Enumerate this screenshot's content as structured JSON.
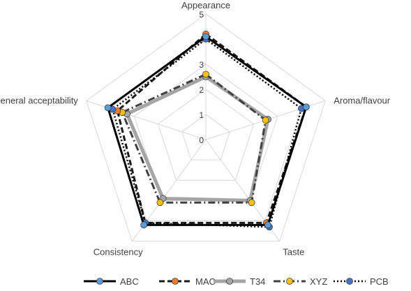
{
  "chart_data": {
    "type": "radar",
    "categories": [
      "Appearance",
      "Aroma/flavour",
      "Taste",
      "Consistency",
      "General acceptability"
    ],
    "rlim": [
      0,
      5
    ],
    "ticks": [
      "0",
      "1",
      "2",
      "3",
      "4",
      "5"
    ],
    "grid": true,
    "legend": "bottom",
    "series": [
      {
        "name": "ABC",
        "values": [
          4.1,
          4.2,
          4.2,
          4.2,
          4.1
        ],
        "color": "#000000",
        "marker": "#5b9bd5",
        "style": "solid"
      },
      {
        "name": "MAC",
        "values": [
          4.2,
          4.2,
          4.1,
          4.1,
          3.7
        ],
        "color": "#1a1a1a",
        "marker": "#ed7d31",
        "style": "dashed"
      },
      {
        "name": "T34",
        "values": [
          2.5,
          2.6,
          3.0,
          2.9,
          3.3
        ],
        "color": "#a5a5a5",
        "marker": "#a5a5a5",
        "style": "thick"
      },
      {
        "name": "XYZ",
        "values": [
          2.6,
          2.5,
          3.1,
          3.1,
          3.5
        ],
        "color": "#404040",
        "marker": "#ffc000",
        "style": "dashdot"
      },
      {
        "name": "PCB",
        "values": [
          4.0,
          4.0,
          4.3,
          4.1,
          3.9
        ],
        "color": "#000000",
        "marker": "#4472c4",
        "style": "dotted"
      }
    ]
  }
}
